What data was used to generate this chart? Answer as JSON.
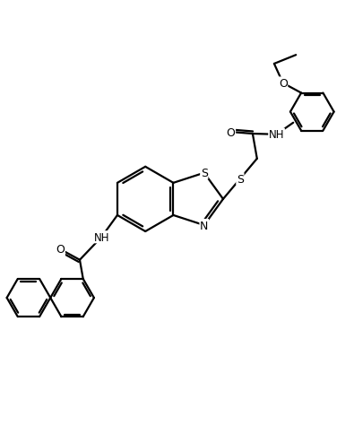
{
  "background_color": "#ffffff",
  "line_color": "#000000",
  "line_width": 1.6,
  "figsize": [
    3.95,
    4.85
  ],
  "dpi": 100,
  "xlim": [
    0,
    10
  ],
  "ylim": [
    0,
    12
  ]
}
